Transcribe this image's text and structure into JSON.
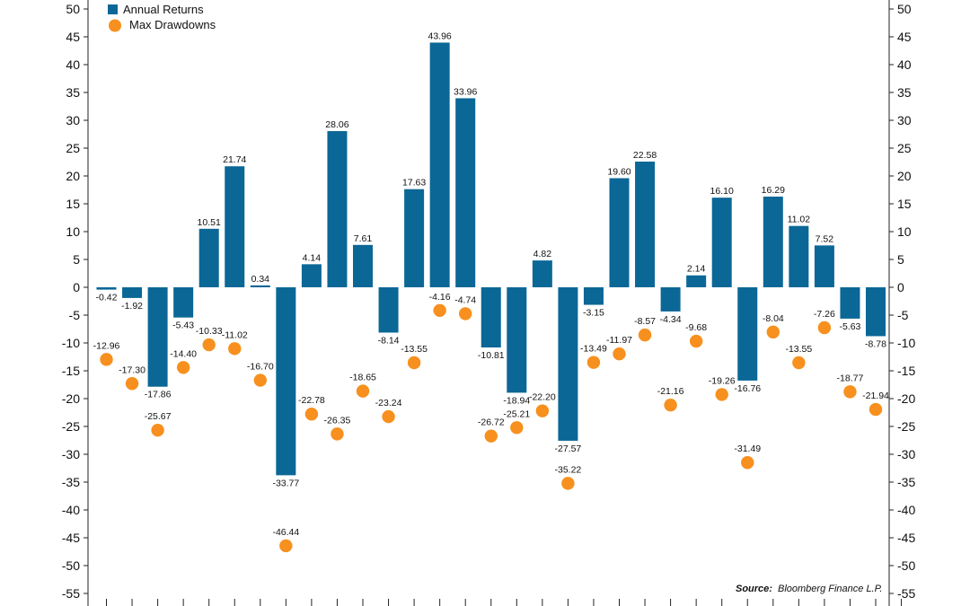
{
  "chart_data": {
    "type": "bar",
    "title": "",
    "xlabel": "",
    "ylabel": "",
    "ylim": [
      -55,
      50
    ],
    "yticks": [
      50,
      45,
      40,
      35,
      30,
      25,
      20,
      15,
      10,
      5,
      0,
      -5,
      -10,
      -15,
      -20,
      -25,
      -30,
      -35,
      -40,
      -45,
      -50,
      -55
    ],
    "legend": [
      {
        "name": "Annual Returns",
        "marker": "square"
      },
      {
        "name": "Max Drawdowns",
        "marker": "circle"
      }
    ],
    "legend_position": "top-left",
    "series": [
      {
        "name": "Annual Returns",
        "kind": "bar",
        "values": [
          -0.42,
          -1.92,
          -17.86,
          -5.43,
          10.51,
          21.74,
          0.34,
          -33.77,
          4.14,
          28.06,
          7.61,
          -8.14,
          17.63,
          43.96,
          33.96,
          -10.81,
          -18.94,
          4.82,
          -27.57,
          -3.15,
          19.6,
          22.58,
          -4.34,
          2.14,
          16.1,
          -16.76,
          16.29,
          11.02,
          7.52,
          -5.63,
          -8.78
        ],
        "labels": [
          "-0.42",
          "-1.92",
          "-17.86",
          "-5.43",
          "10.51",
          "21.74",
          "0.34",
          "-33.77",
          "4.14",
          "28.06",
          "7.61",
          "-8.14",
          "17.63",
          "43.96",
          "33.96",
          "-10.81",
          "-18.94",
          "4.82",
          "-27.57",
          "-3.15",
          "19.60",
          "22.58",
          "-4.34",
          "2.14",
          "16.10",
          "-16.76",
          "16.29",
          "11.02",
          "7.52",
          "-5.63",
          "-8.78"
        ]
      },
      {
        "name": "Max Drawdowns",
        "kind": "scatter",
        "values": [
          -12.96,
          -17.3,
          -25.67,
          -14.4,
          -10.33,
          -11.02,
          -16.7,
          -46.44,
          -22.78,
          -26.35,
          -18.65,
          -23.24,
          -13.55,
          -4.16,
          -4.74,
          -26.72,
          -25.21,
          -22.2,
          -35.22,
          -13.49,
          -11.97,
          -8.57,
          -21.16,
          -9.68,
          -19.26,
          -31.49,
          -8.04,
          -13.55,
          -7.26,
          -18.77,
          -21.94
        ],
        "labels": [
          "-12.96",
          "-17.30",
          "-25.67",
          "-14.40",
          "-10.33",
          "-11.02",
          "-16.70",
          "-46.44",
          "-22.78",
          "-26.35",
          "-18.65",
          "-23.24",
          "-13.55",
          "-4.16",
          "-4.74",
          "-26.72",
          "-25.21",
          "-22.20",
          "-35.22",
          "-13.49",
          "-11.97",
          "-8.57",
          "-21.16",
          "-9.68",
          "-19.26",
          "-31.49",
          "-8.04",
          "-13.55",
          "-7.26",
          "-18.77",
          "-21.94"
        ]
      }
    ],
    "source_label": "Source:",
    "source_text": "Bloomberg Finance L.P.",
    "colors": {
      "bar": "#0b6796",
      "dot": "#f7901e",
      "axis": "#222222"
    }
  }
}
